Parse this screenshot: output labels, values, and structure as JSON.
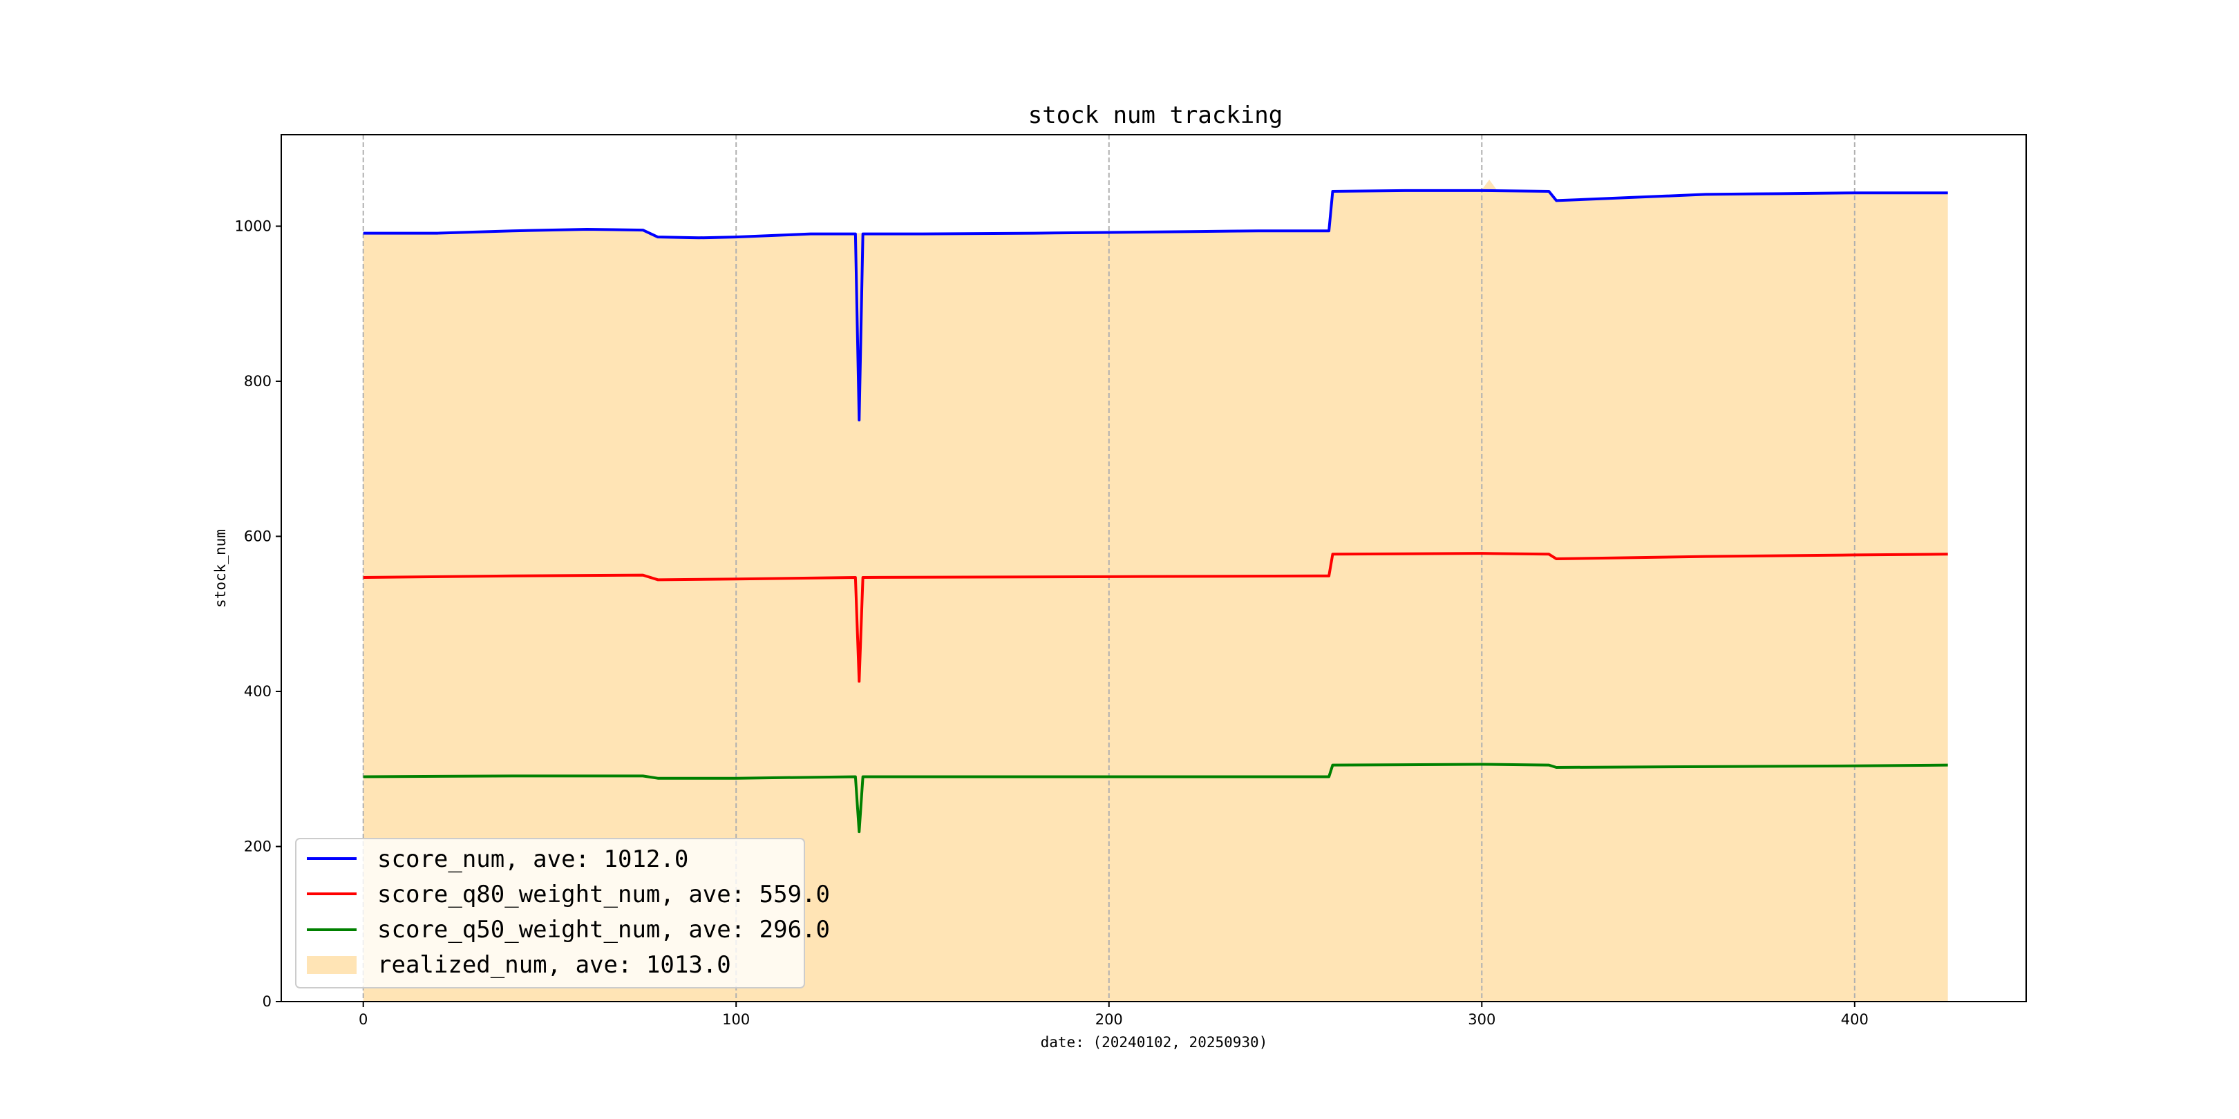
{
  "chart_data": {
    "type": "line",
    "title": "stock num tracking",
    "xlabel": "date: (20240102, 20250930)",
    "ylabel": "stock_num",
    "xlim": [
      -22,
      446
    ],
    "ylim": [
      0,
      1118
    ],
    "x_ticks": [
      0,
      100,
      200,
      300,
      400
    ],
    "y_ticks": [
      0,
      200,
      400,
      600,
      800,
      1000
    ],
    "grid": "x-axis dashed vertical lines",
    "legend_position": "lower-left",
    "series": [
      {
        "name": "score_num, ave: 1012.0",
        "kind": "line",
        "color": "#0000ff",
        "points": [
          [
            0,
            991
          ],
          [
            20,
            991
          ],
          [
            40,
            994
          ],
          [
            60,
            996
          ],
          [
            75,
            995
          ],
          [
            79,
            986
          ],
          [
            90,
            985
          ],
          [
            100,
            986
          ],
          [
            110,
            988
          ],
          [
            120,
            990
          ],
          [
            132,
            990
          ],
          [
            133,
            750
          ],
          [
            134,
            990
          ],
          [
            150,
            990
          ],
          [
            180,
            991
          ],
          [
            200,
            992
          ],
          [
            220,
            993
          ],
          [
            240,
            994
          ],
          [
            259,
            994
          ],
          [
            260,
            1045
          ],
          [
            280,
            1046
          ],
          [
            300,
            1046
          ],
          [
            318,
            1045
          ],
          [
            320,
            1033
          ],
          [
            340,
            1037
          ],
          [
            360,
            1041
          ],
          [
            380,
            1042
          ],
          [
            400,
            1043
          ],
          [
            425,
            1043
          ]
        ]
      },
      {
        "name": "score_q80_weight_num, ave: 559.0",
        "kind": "line",
        "color": "#ff0000",
        "points": [
          [
            0,
            547
          ],
          [
            40,
            549
          ],
          [
            75,
            550
          ],
          [
            79,
            544
          ],
          [
            100,
            545
          ],
          [
            132,
            547
          ],
          [
            133,
            413
          ],
          [
            134,
            547
          ],
          [
            200,
            548
          ],
          [
            259,
            549
          ],
          [
            260,
            577
          ],
          [
            300,
            578
          ],
          [
            318,
            577
          ],
          [
            320,
            571
          ],
          [
            360,
            574
          ],
          [
            400,
            576
          ],
          [
            425,
            577
          ]
        ]
      },
      {
        "name": "score_q50_weight_num, ave: 296.0",
        "kind": "line",
        "color": "#008000",
        "points": [
          [
            0,
            290
          ],
          [
            40,
            291
          ],
          [
            75,
            291
          ],
          [
            79,
            288
          ],
          [
            100,
            288
          ],
          [
            132,
            290
          ],
          [
            133,
            219
          ],
          [
            134,
            290
          ],
          [
            200,
            290
          ],
          [
            259,
            290
          ],
          [
            260,
            305
          ],
          [
            300,
            306
          ],
          [
            318,
            305
          ],
          [
            320,
            302
          ],
          [
            360,
            303
          ],
          [
            400,
            304
          ],
          [
            425,
            305
          ]
        ]
      },
      {
        "name": "realized_num, ave: 1013.0",
        "kind": "area",
        "color": "#ffe4b5",
        "points": [
          [
            0,
            990
          ],
          [
            20,
            992
          ],
          [
            40,
            995
          ],
          [
            60,
            997
          ],
          [
            75,
            996
          ],
          [
            79,
            987
          ],
          [
            100,
            987
          ],
          [
            132,
            991
          ],
          [
            133,
            991
          ],
          [
            134,
            991
          ],
          [
            150,
            991
          ],
          [
            200,
            993
          ],
          [
            259,
            995
          ],
          [
            260,
            1046
          ],
          [
            300,
            1047
          ],
          [
            302,
            1060
          ],
          [
            304,
            1047
          ],
          [
            318,
            1046
          ],
          [
            320,
            1034
          ],
          [
            360,
            1042
          ],
          [
            400,
            1044
          ],
          [
            425,
            1044
          ]
        ]
      }
    ]
  }
}
